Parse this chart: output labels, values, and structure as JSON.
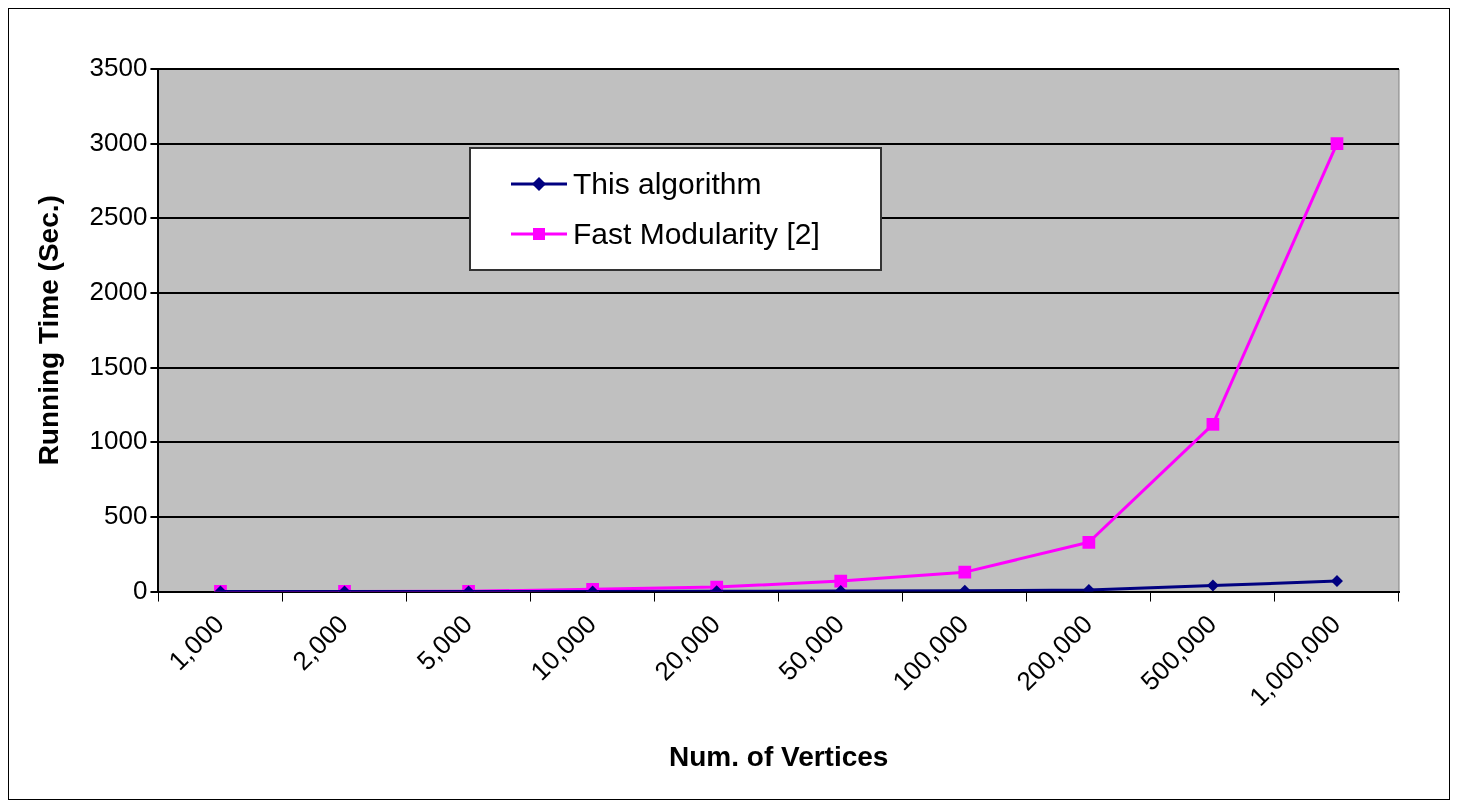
{
  "chart_data": {
    "type": "line",
    "xlabel": "Num. of Vertices",
    "ylabel": "Running Time (Sec.)",
    "categories": [
      "1,000",
      "2,000",
      "5,000",
      "10,000",
      "20,000",
      "50,000",
      "100,000",
      "200,000",
      "500,000",
      "1,000,000"
    ],
    "series": [
      {
        "name": "This algorithm",
        "color": "#000080",
        "marker": "diamond",
        "values": [
          0,
          0,
          0,
          1,
          2,
          3,
          5,
          10,
          40,
          70
        ]
      },
      {
        "name": "Fast Modularity [2]",
        "color": "#ff00ff",
        "marker": "square",
        "values": [
          1,
          1,
          2,
          15,
          30,
          70,
          130,
          330,
          1120,
          3000
        ]
      }
    ],
    "ylim": [
      0,
      3500
    ],
    "yticks": [
      0,
      500,
      1000,
      1500,
      2000,
      2500,
      3000,
      3500
    ],
    "grid": "y",
    "legend": "top left",
    "line_style": "solid"
  }
}
